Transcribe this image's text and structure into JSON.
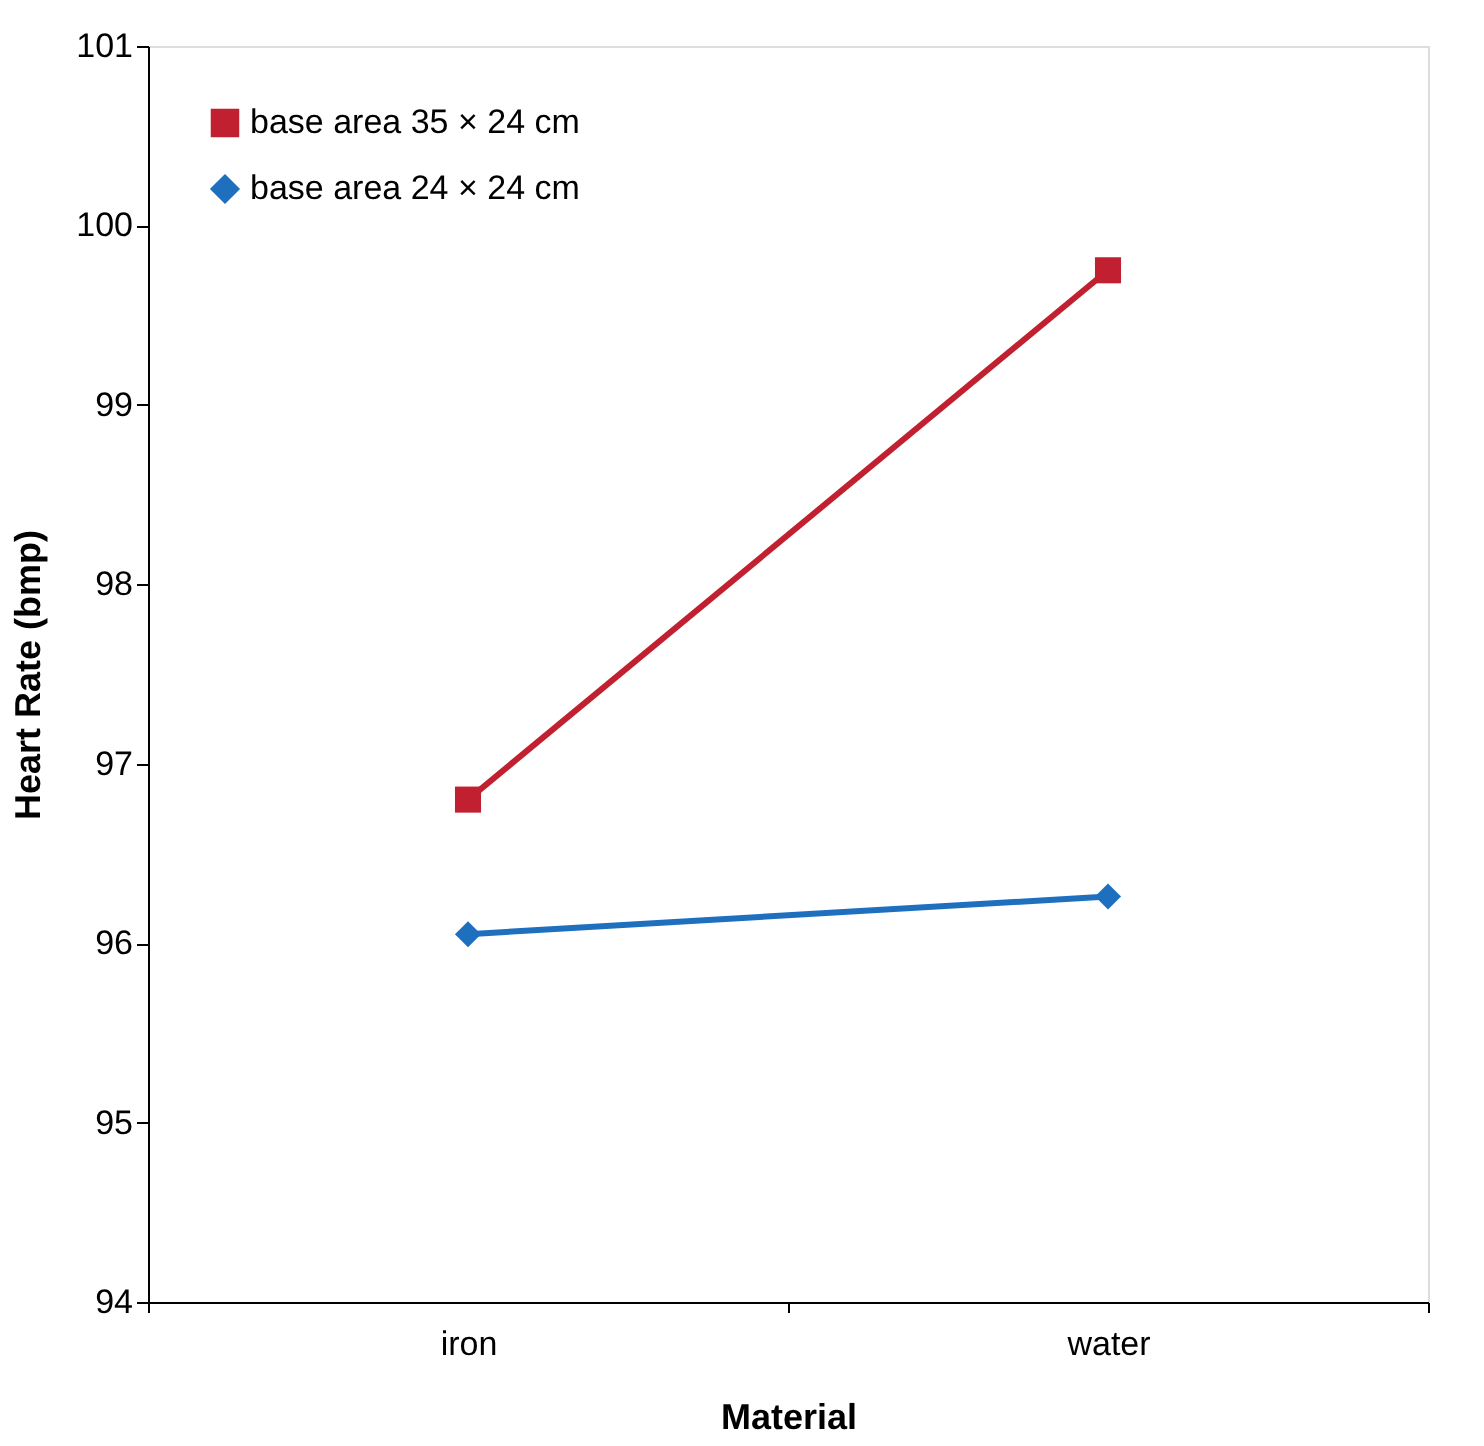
{
  "chart_data": {
    "type": "line",
    "xlabel": "Material",
    "ylabel": "Heart Rate (bmp)",
    "categories": [
      "iron",
      "water"
    ],
    "series": [
      {
        "name": "base area 35 × 24 cm",
        "color": "#c0202f",
        "marker": "square",
        "values": [
          96.8,
          99.75
        ]
      },
      {
        "name": "base area 24 × 24 cm",
        "color": "#1f6fbf",
        "marker": "diamond",
        "values": [
          96.05,
          96.26
        ]
      }
    ],
    "ylim": [
      94,
      101
    ],
    "yticks": [
      94,
      95,
      96,
      97,
      98,
      99,
      100,
      101
    ],
    "grid": false,
    "legend": "top left",
    "line_style": "solid"
  }
}
